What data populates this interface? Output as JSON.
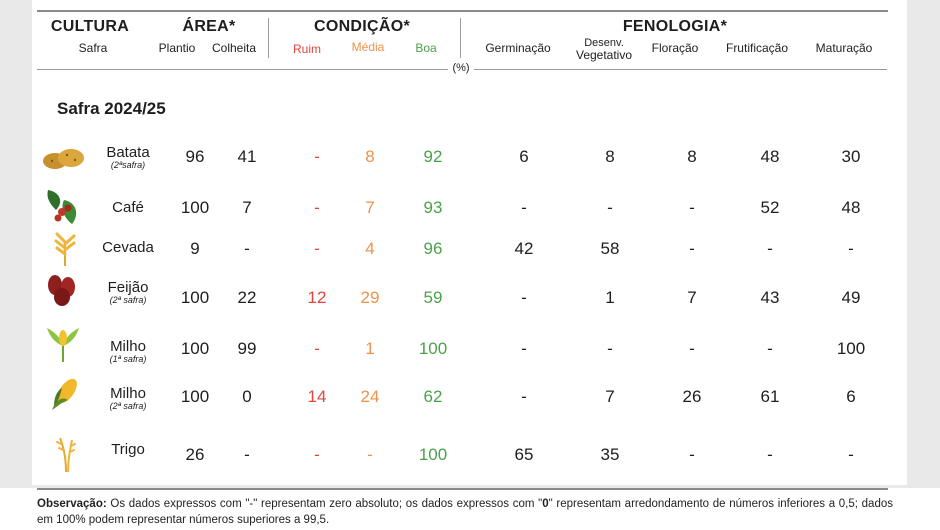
{
  "header": {
    "cultura": {
      "title": "CULTURA",
      "sub": "Safra"
    },
    "area": {
      "title": "ÁREA*",
      "plantio": "Plantio",
      "colheita": "Colheita"
    },
    "condicao": {
      "title": "CONDIÇÃO*",
      "ruim": "Ruim",
      "media": "Média",
      "boa": "Boa"
    },
    "fenologia": {
      "title": "FENOLOGIA*",
      "germinacao": "Germinação",
      "desenv_line1": "Desenv.",
      "desenv_line2": "Vegetativo",
      "floracao": "Floração",
      "frutificacao": "Frutificação",
      "maturacao": "Maturação"
    },
    "unit": "(%)"
  },
  "section_title": "Safra 2024/25",
  "colors": {
    "ruim": "#e0463c",
    "media": "#f0914a",
    "boa": "#4aa24a"
  },
  "rows": [
    {
      "name": "Batata",
      "note": "(2ªsafra)",
      "icon": "potato-icon",
      "plantio": "96",
      "colheita": "41",
      "ruim": "-",
      "media": "8",
      "boa": "92",
      "germinacao": "6",
      "desenv": "8",
      "floracao": "8",
      "frutificacao": "48",
      "maturacao": "30"
    },
    {
      "name": "Café",
      "note": "",
      "icon": "coffee-icon",
      "plantio": "100",
      "colheita": "7",
      "ruim": "-",
      "media": "7",
      "boa": "93",
      "germinacao": "-",
      "desenv": "-",
      "floracao": "-",
      "frutificacao": "52",
      "maturacao": "48"
    },
    {
      "name": "Cevada",
      "note": "",
      "icon": "barley-icon",
      "plantio": "9",
      "colheita": "-",
      "ruim": "-",
      "media": "4",
      "boa": "96",
      "germinacao": "42",
      "desenv": "58",
      "floracao": "-",
      "frutificacao": "-",
      "maturacao": "-"
    },
    {
      "name": "Feijão",
      "note": "(2ª safra)",
      "icon": "bean-icon",
      "plantio": "100",
      "colheita": "22",
      "ruim": "12",
      "media": "29",
      "boa": "59",
      "germinacao": "-",
      "desenv": "1",
      "floracao": "7",
      "frutificacao": "43",
      "maturacao": "49"
    },
    {
      "name": "Milho",
      "note": "(1ª safra)",
      "icon": "corn-plant-icon",
      "plantio": "100",
      "colheita": "99",
      "ruim": "-",
      "media": "1",
      "boa": "100",
      "germinacao": "-",
      "desenv": "-",
      "floracao": "-",
      "frutificacao": "-",
      "maturacao": "100"
    },
    {
      "name": "Milho",
      "note": "(2ª safra)",
      "icon": "corn-cob-icon",
      "plantio": "100",
      "colheita": "0",
      "ruim": "14",
      "media": "24",
      "boa": "62",
      "germinacao": "-",
      "desenv": "7",
      "floracao": "26",
      "frutificacao": "61",
      "maturacao": "6"
    },
    {
      "name": "Trigo",
      "note": "",
      "icon": "wheat-icon",
      "plantio": "26",
      "colheita": "-",
      "ruim": "-",
      "media": "-",
      "boa": "100",
      "germinacao": "65",
      "desenv": "35",
      "floracao": "-",
      "frutificacao": "-",
      "maturacao": "-"
    }
  ],
  "footer": {
    "label": "Observação:",
    "text": " Os dados expressos com \"-\" representam zero absoluto; os dados expressos com \"",
    "zero": "0",
    "text2": "\" representam arredondamento de números inferiores a 0,5; dados em 100% podem representar números superiores a 99,5."
  }
}
